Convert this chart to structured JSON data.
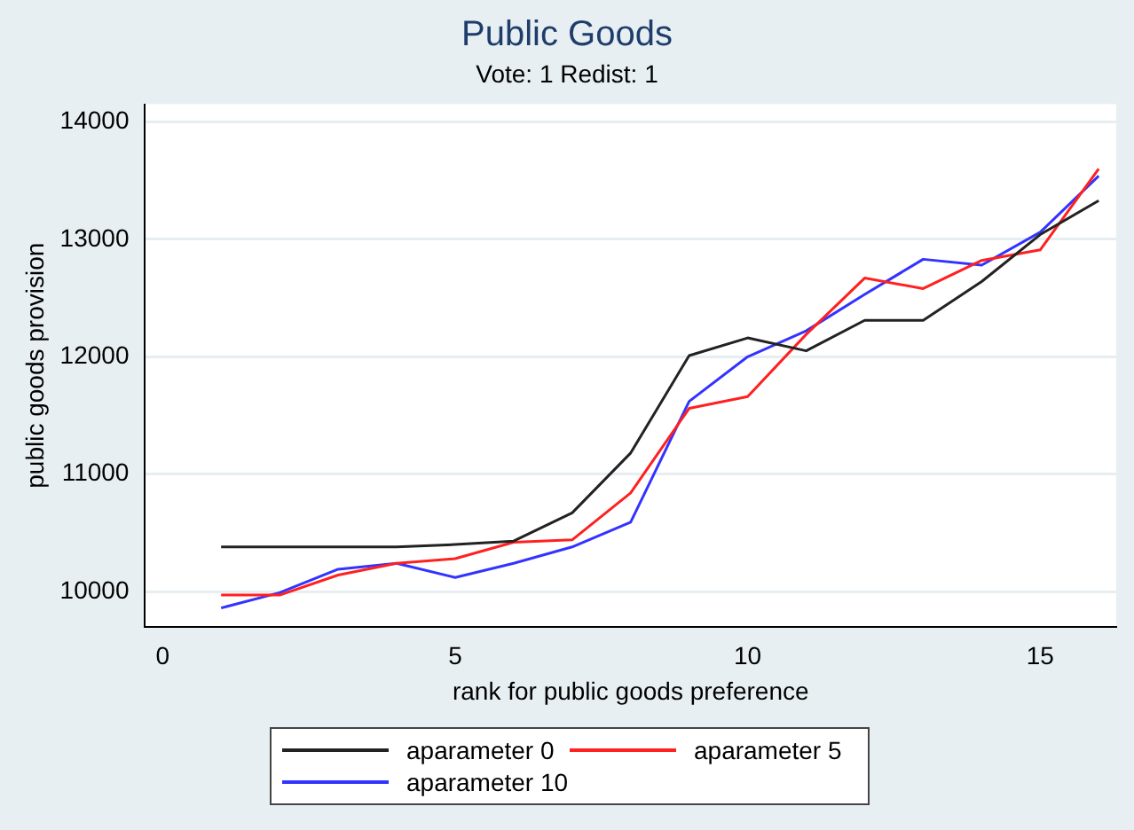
{
  "chart_data": {
    "type": "line",
    "title": "Public Goods",
    "subtitle": "Vote: 1 Redist: 1",
    "xlabel": "rank for public goods preference",
    "ylabel": "public goods provision",
    "x": [
      1,
      2,
      3,
      4,
      5,
      6,
      7,
      8,
      9,
      10,
      11,
      12,
      13,
      14,
      15,
      16
    ],
    "series": [
      {
        "name": "aparameter 0",
        "color": "#222222",
        "values": [
          10380,
          10380,
          10380,
          10380,
          10400,
          10430,
          10670,
          11180,
          12010,
          12160,
          12050,
          12310,
          12310,
          12640,
          13040,
          13330
        ]
      },
      {
        "name": "aparameter 5",
        "color": "#ff2020",
        "values": [
          9970,
          9970,
          10140,
          10240,
          10280,
          10420,
          10440,
          10840,
          11560,
          11660,
          12190,
          12670,
          12580,
          12820,
          12910,
          13600
        ]
      },
      {
        "name": "aparameter 10",
        "color": "#3333ff",
        "values": [
          9860,
          9990,
          10190,
          10240,
          10120,
          10240,
          10380,
          10590,
          11620,
          12000,
          12220,
          12530,
          12830,
          12780,
          13060,
          13540
        ]
      }
    ],
    "xlim": [
      -0.3,
      16.3
    ],
    "xticks": [
      0,
      5,
      10,
      15
    ],
    "ylim": [
      9700,
      14150
    ],
    "yticks": [
      10000,
      11000,
      12000,
      13000,
      14000
    ],
    "grid": "y",
    "legend": "bottom",
    "marker": "none",
    "line_style": "solid"
  }
}
